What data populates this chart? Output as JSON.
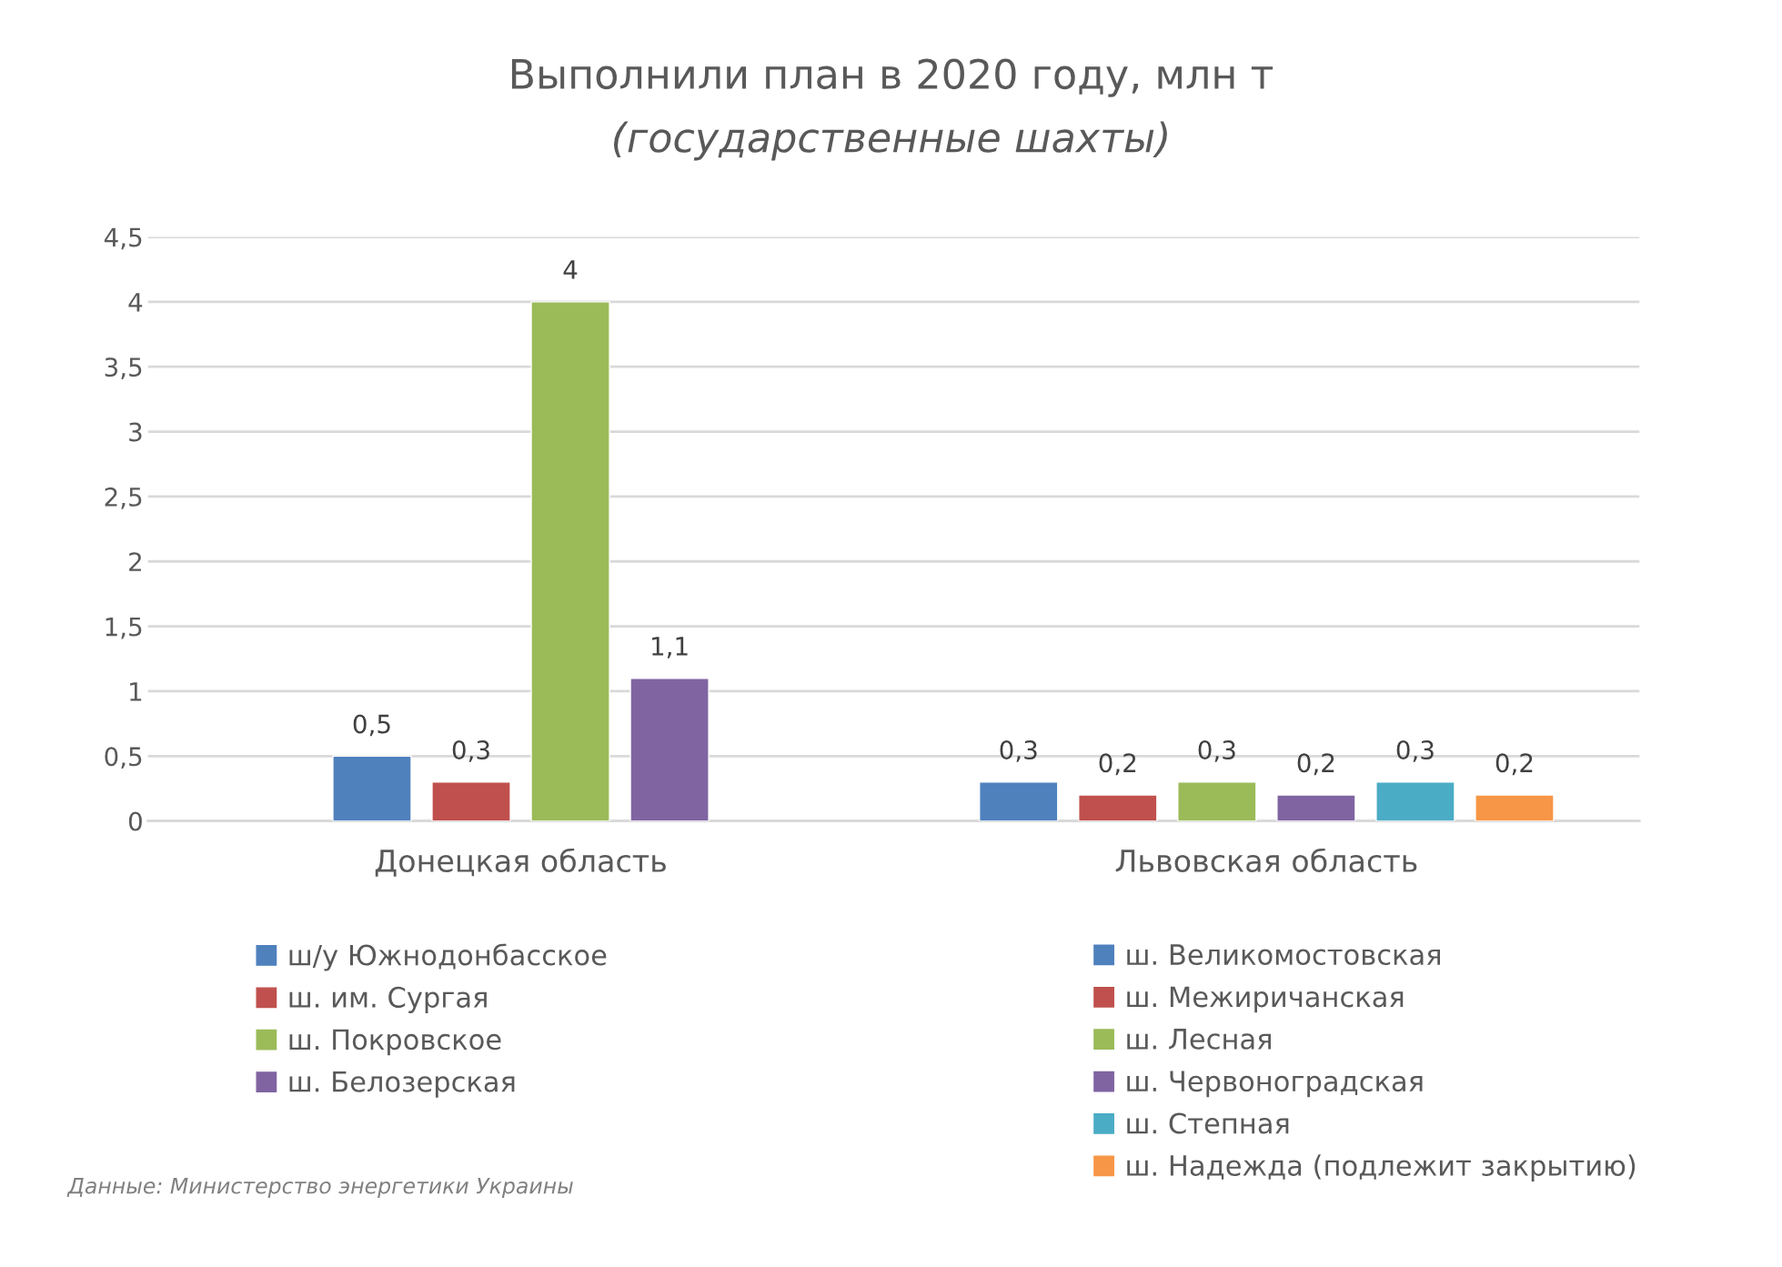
{
  "chart_data": {
    "type": "bar",
    "title": "Выполнили план в 2020 году, млн т",
    "subtitle": "(государственные шахты)",
    "categories": [
      "Донецкая область",
      "Львовская область"
    ],
    "series": [
      {
        "name": "ш/у Южнодонбасское",
        "color": "#4f81bd",
        "values": [
          0.5,
          null
        ],
        "value_labels": [
          "0,5",
          null
        ]
      },
      {
        "name": "ш. им. Сургая",
        "color": "#c0504d",
        "values": [
          0.3,
          null
        ],
        "value_labels": [
          "0,3",
          null
        ]
      },
      {
        "name": "ш. Покровское",
        "color": "#9bbb59",
        "values": [
          4,
          null
        ],
        "value_labels": [
          "4",
          null
        ]
      },
      {
        "name": "ш. Белозерская",
        "color": "#8064a2",
        "values": [
          1.1,
          null
        ],
        "value_labels": [
          "1,1",
          null
        ]
      },
      {
        "name": "ш. Великомостовская",
        "color": "#4f81bd",
        "values": [
          null,
          0.3
        ],
        "value_labels": [
          null,
          "0,3"
        ]
      },
      {
        "name": "ш. Межиричанская",
        "color": "#c0504d",
        "values": [
          null,
          0.2
        ],
        "value_labels": [
          null,
          "0,2"
        ]
      },
      {
        "name": "ш. Лесная",
        "color": "#9bbb59",
        "values": [
          null,
          0.3
        ],
        "value_labels": [
          null,
          "0,3"
        ]
      },
      {
        "name": "ш. Червоноградская",
        "color": "#8064a2",
        "values": [
          null,
          0.2
        ],
        "value_labels": [
          null,
          "0,2"
        ]
      },
      {
        "name": "ш. Степная",
        "color": "#4bacc6",
        "values": [
          null,
          0.3
        ],
        "value_labels": [
          null,
          "0,3"
        ]
      },
      {
        "name": "ш. Надежда (подлежит закрытию)",
        "color": "#f79646",
        "values": [
          null,
          0.2
        ],
        "value_labels": [
          null,
          "0,2"
        ]
      }
    ],
    "ylim": [
      0,
      4.5
    ],
    "yticks": [
      0,
      {
        "value": 0.5,
        "label": "0,5"
      },
      1,
      {
        "value": 1.5,
        "label": "1,5"
      },
      2,
      {
        "value": 2.5,
        "label": "2,5"
      },
      3,
      {
        "value": 3.5,
        "label": "3,5"
      },
      4,
      {
        "value": 4.5,
        "label": "4,5"
      }
    ],
    "grid": "y",
    "legend": "bottom",
    "annotations": [
      "Данные: Министерство энергетики Украины"
    ]
  }
}
